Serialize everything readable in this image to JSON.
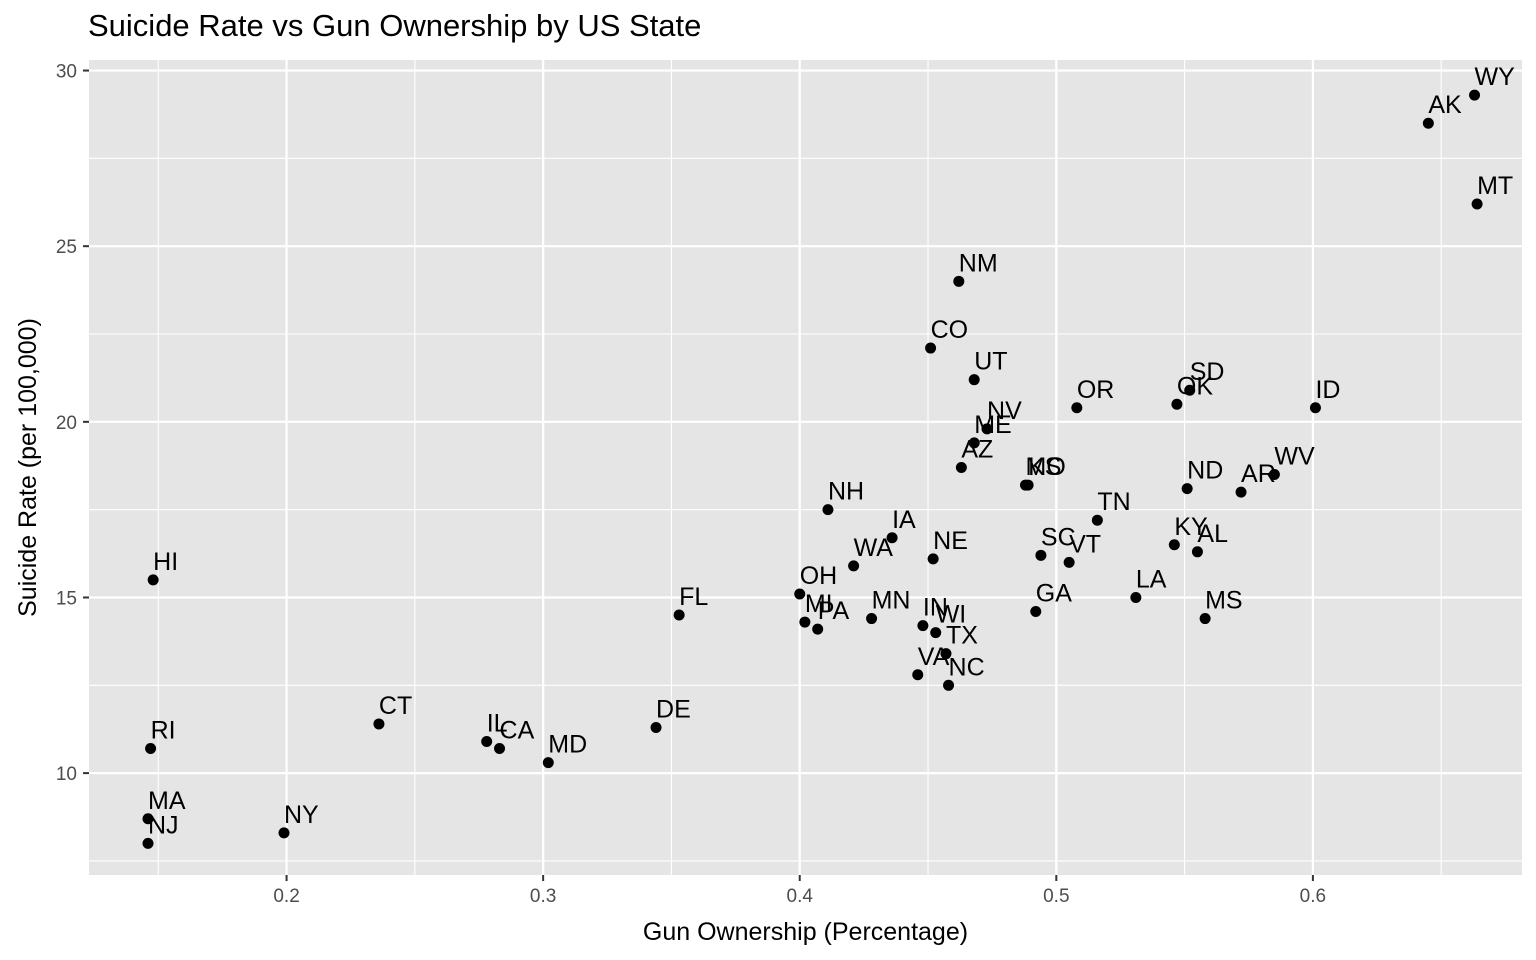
{
  "chart_data": {
    "type": "scatter",
    "title": "Suicide Rate vs Gun Ownership by US State",
    "xlabel": "Gun Ownership (Percentage)",
    "ylabel": "Suicide Rate (per 100,000)",
    "xlim": [
      0.123,
      0.6815
    ],
    "ylim": [
      7.1,
      30.3
    ],
    "x_ticks": [
      0.2,
      0.3,
      0.4,
      0.5,
      0.6
    ],
    "x_tick_labels": [
      "0.2",
      "0.3",
      "0.4",
      "0.5",
      "0.6"
    ],
    "y_ticks": [
      10,
      15,
      20,
      25,
      30
    ],
    "y_tick_labels": [
      "10",
      "15",
      "20",
      "25",
      "30"
    ],
    "grid": true,
    "panel_background": "#e5e5e5",
    "grid_color": "#ffffff",
    "point_color": "#000000",
    "points": [
      {
        "label": "WY",
        "x": 0.663,
        "y": 29.3
      },
      {
        "label": "AK",
        "x": 0.645,
        "y": 28.5
      },
      {
        "label": "MT",
        "x": 0.664,
        "y": 26.2
      },
      {
        "label": "NM",
        "x": 0.462,
        "y": 24.0
      },
      {
        "label": "CO",
        "x": 0.451,
        "y": 22.1
      },
      {
        "label": "UT",
        "x": 0.468,
        "y": 21.2
      },
      {
        "label": "OR",
        "x": 0.508,
        "y": 20.4
      },
      {
        "label": "OK",
        "x": 0.547,
        "y": 20.5
      },
      {
        "label": "SD",
        "x": 0.552,
        "y": 20.9
      },
      {
        "label": "ID",
        "x": 0.601,
        "y": 20.4
      },
      {
        "label": "NV",
        "x": 0.473,
        "y": 19.8
      },
      {
        "label": "ME",
        "x": 0.468,
        "y": 19.4
      },
      {
        "label": "AZ",
        "x": 0.463,
        "y": 18.7
      },
      {
        "label": "MO",
        "x": 0.488,
        "y": 18.2
      },
      {
        "label": "KS",
        "x": 0.489,
        "y": 18.2
      },
      {
        "label": "ND",
        "x": 0.551,
        "y": 18.1
      },
      {
        "label": "AR",
        "x": 0.572,
        "y": 18.0
      },
      {
        "label": "WV",
        "x": 0.585,
        "y": 18.5
      },
      {
        "label": "TN",
        "x": 0.516,
        "y": 17.2
      },
      {
        "label": "NH",
        "x": 0.411,
        "y": 17.5
      },
      {
        "label": "IA",
        "x": 0.436,
        "y": 16.7
      },
      {
        "label": "WA",
        "x": 0.421,
        "y": 15.9
      },
      {
        "label": "NE",
        "x": 0.452,
        "y": 16.1
      },
      {
        "label": "SC",
        "x": 0.494,
        "y": 16.2
      },
      {
        "label": "VT",
        "x": 0.505,
        "y": 16.0
      },
      {
        "label": "KY",
        "x": 0.546,
        "y": 16.5
      },
      {
        "label": "AL",
        "x": 0.555,
        "y": 16.3
      },
      {
        "label": "HI",
        "x": 0.148,
        "y": 15.5
      },
      {
        "label": "OH",
        "x": 0.4,
        "y": 15.1
      },
      {
        "label": "FL",
        "x": 0.353,
        "y": 14.5
      },
      {
        "label": "MI",
        "x": 0.402,
        "y": 14.3
      },
      {
        "label": "PA",
        "x": 0.407,
        "y": 14.1
      },
      {
        "label": "MN",
        "x": 0.428,
        "y": 14.4
      },
      {
        "label": "IN",
        "x": 0.448,
        "y": 14.2
      },
      {
        "label": "WI",
        "x": 0.453,
        "y": 14.0
      },
      {
        "label": "GA",
        "x": 0.492,
        "y": 14.6
      },
      {
        "label": "LA",
        "x": 0.531,
        "y": 15.0
      },
      {
        "label": "MS",
        "x": 0.558,
        "y": 14.4
      },
      {
        "label": "TX",
        "x": 0.457,
        "y": 13.4
      },
      {
        "label": "VA",
        "x": 0.446,
        "y": 12.8
      },
      {
        "label": "NC",
        "x": 0.458,
        "y": 12.5
      },
      {
        "label": "CT",
        "x": 0.236,
        "y": 11.4
      },
      {
        "label": "DE",
        "x": 0.344,
        "y": 11.3
      },
      {
        "label": "IL",
        "x": 0.278,
        "y": 10.9
      },
      {
        "label": "CA",
        "x": 0.283,
        "y": 10.7
      },
      {
        "label": "MD",
        "x": 0.302,
        "y": 10.3
      },
      {
        "label": "RI",
        "x": 0.147,
        "y": 10.7
      },
      {
        "label": "MA",
        "x": 0.146,
        "y": 8.7
      },
      {
        "label": "NJ",
        "x": 0.146,
        "y": 8.0
      },
      {
        "label": "NY",
        "x": 0.199,
        "y": 8.3
      }
    ]
  }
}
